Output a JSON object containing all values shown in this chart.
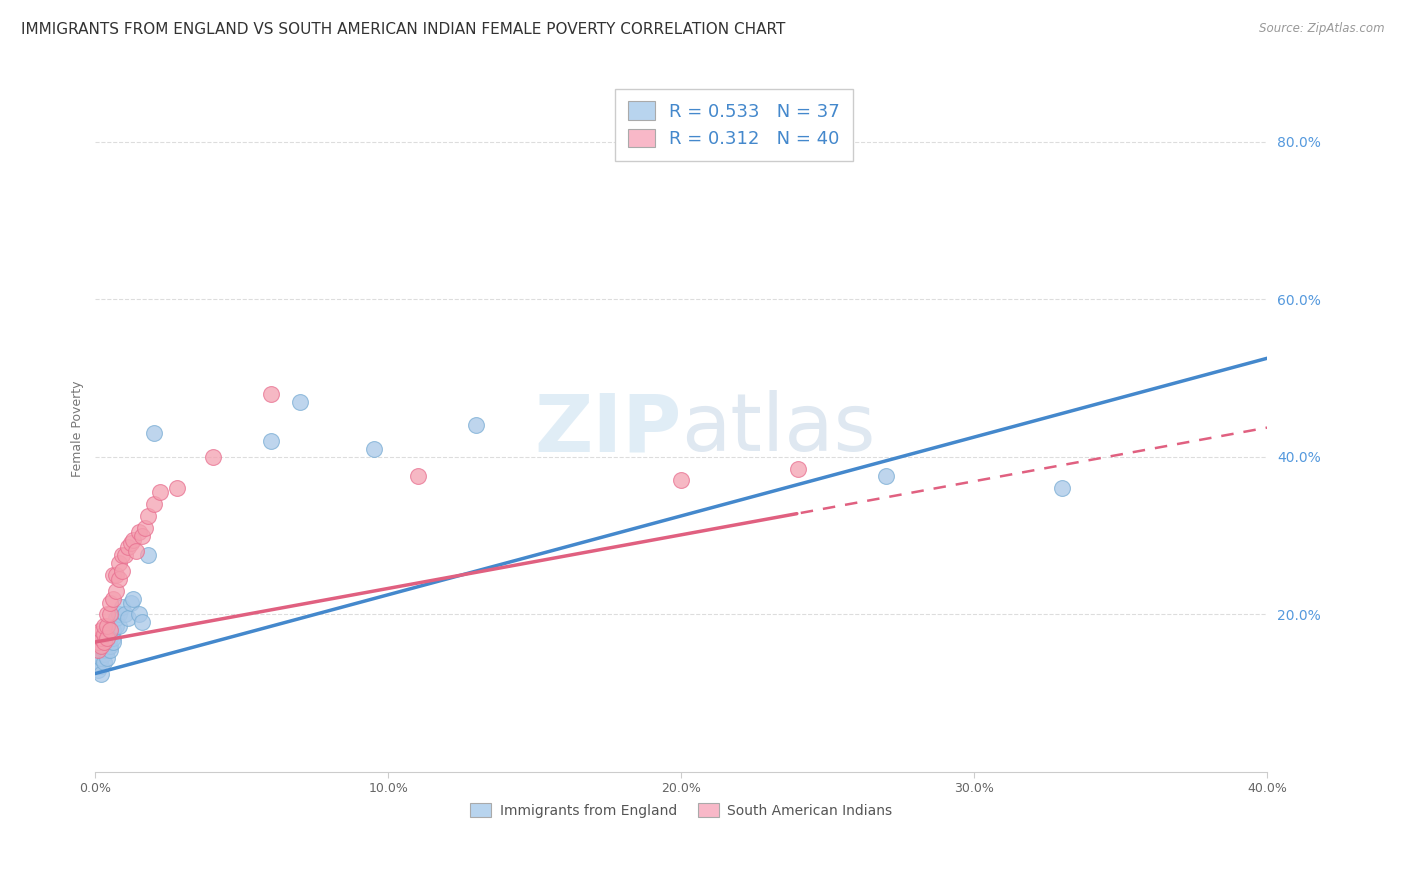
{
  "title": "IMMIGRANTS FROM ENGLAND VS SOUTH AMERICAN INDIAN FEMALE POVERTY CORRELATION CHART",
  "source": "Source: ZipAtlas.com",
  "ylabel": "Female Poverty",
  "xlabel_legend1": "Immigrants from England",
  "xlabel_legend2": "South American Indians",
  "xlim": [
    0.0,
    0.4
  ],
  "ylim": [
    0.0,
    0.87
  ],
  "xtick_labels": [
    "0.0%",
    "10.0%",
    "20.0%",
    "30.0%",
    "40.0%"
  ],
  "xtick_vals": [
    0.0,
    0.1,
    0.2,
    0.3,
    0.4
  ],
  "ytick_labels_right": [
    "20.0%",
    "40.0%",
    "60.0%",
    "80.0%"
  ],
  "ytick_vals_right": [
    0.2,
    0.4,
    0.6,
    0.8
  ],
  "R_blue": 0.533,
  "N_blue": 37,
  "R_pink": 0.312,
  "N_pink": 40,
  "blue_color": "#a8c8e8",
  "pink_color": "#f4a0b0",
  "blue_edge_color": "#7aadd4",
  "pink_edge_color": "#e87090",
  "blue_line_color": "#4488cc",
  "pink_line_color": "#e06080",
  "legend_blue_fill": "#b8d4ee",
  "legend_pink_fill": "#f8b8c8",
  "background_color": "#ffffff",
  "grid_color": "#dddddd",
  "title_fontsize": 11,
  "axis_label_fontsize": 9,
  "tick_fontsize": 9,
  "watermark_text": "ZIPatlas",
  "blue_line_intercept": 0.125,
  "blue_line_slope": 1.0,
  "pink_line_intercept": 0.165,
  "pink_line_slope": 0.68,
  "pink_line_solid_end": 0.24,
  "blue_x": [
    0.001,
    0.001,
    0.002,
    0.002,
    0.002,
    0.003,
    0.003,
    0.003,
    0.003,
    0.004,
    0.004,
    0.004,
    0.005,
    0.005,
    0.005,
    0.006,
    0.006,
    0.006,
    0.007,
    0.007,
    0.008,
    0.008,
    0.009,
    0.01,
    0.011,
    0.012,
    0.013,
    0.015,
    0.016,
    0.018,
    0.02,
    0.06,
    0.07,
    0.095,
    0.13,
    0.27,
    0.33
  ],
  "blue_y": [
    0.13,
    0.14,
    0.135,
    0.145,
    0.125,
    0.15,
    0.14,
    0.155,
    0.16,
    0.155,
    0.165,
    0.145,
    0.16,
    0.17,
    0.155,
    0.17,
    0.18,
    0.165,
    0.185,
    0.195,
    0.2,
    0.185,
    0.21,
    0.2,
    0.195,
    0.215,
    0.22,
    0.2,
    0.19,
    0.275,
    0.43,
    0.42,
    0.47,
    0.41,
    0.44,
    0.375,
    0.36
  ],
  "pink_x": [
    0.001,
    0.001,
    0.001,
    0.002,
    0.002,
    0.002,
    0.003,
    0.003,
    0.003,
    0.004,
    0.004,
    0.004,
    0.005,
    0.005,
    0.005,
    0.006,
    0.006,
    0.007,
    0.007,
    0.008,
    0.008,
    0.009,
    0.009,
    0.01,
    0.011,
    0.012,
    0.013,
    0.014,
    0.015,
    0.016,
    0.017,
    0.018,
    0.02,
    0.022,
    0.028,
    0.04,
    0.06,
    0.11,
    0.2,
    0.24
  ],
  "pink_y": [
    0.155,
    0.165,
    0.175,
    0.16,
    0.17,
    0.18,
    0.165,
    0.175,
    0.185,
    0.17,
    0.185,
    0.2,
    0.18,
    0.2,
    0.215,
    0.22,
    0.25,
    0.23,
    0.25,
    0.245,
    0.265,
    0.275,
    0.255,
    0.275,
    0.285,
    0.29,
    0.295,
    0.28,
    0.305,
    0.3,
    0.31,
    0.325,
    0.34,
    0.355,
    0.36,
    0.4,
    0.48,
    0.375,
    0.37,
    0.385
  ]
}
